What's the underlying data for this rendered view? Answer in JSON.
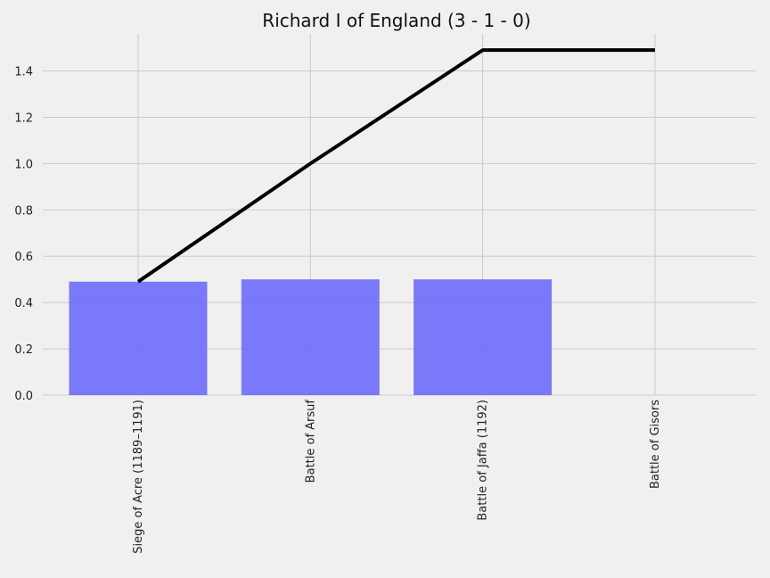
{
  "chart_data": {
    "type": "bar",
    "title": "Richard I of England (3 - 1 - 0)",
    "categories": [
      "Siege of Acre (1189–1191)",
      "Battle of Arsuf",
      "Battle of Jaffa (1192)",
      "Battle of Gisors"
    ],
    "series": [
      {
        "type": "bar",
        "values": [
          0.49,
          0.5,
          0.5,
          0
        ],
        "color": "#6b6bfa"
      },
      {
        "type": "line",
        "values": [
          0.49,
          1.0,
          1.49,
          1.49
        ],
        "color": "#000000"
      }
    ],
    "yticks": [
      "0.0",
      "0.2",
      "0.4",
      "0.6",
      "0.8",
      "1.0",
      "1.2",
      "1.4"
    ],
    "ylim": [
      0,
      1.56
    ],
    "grid": true,
    "xlabel": "",
    "ylabel": ""
  }
}
